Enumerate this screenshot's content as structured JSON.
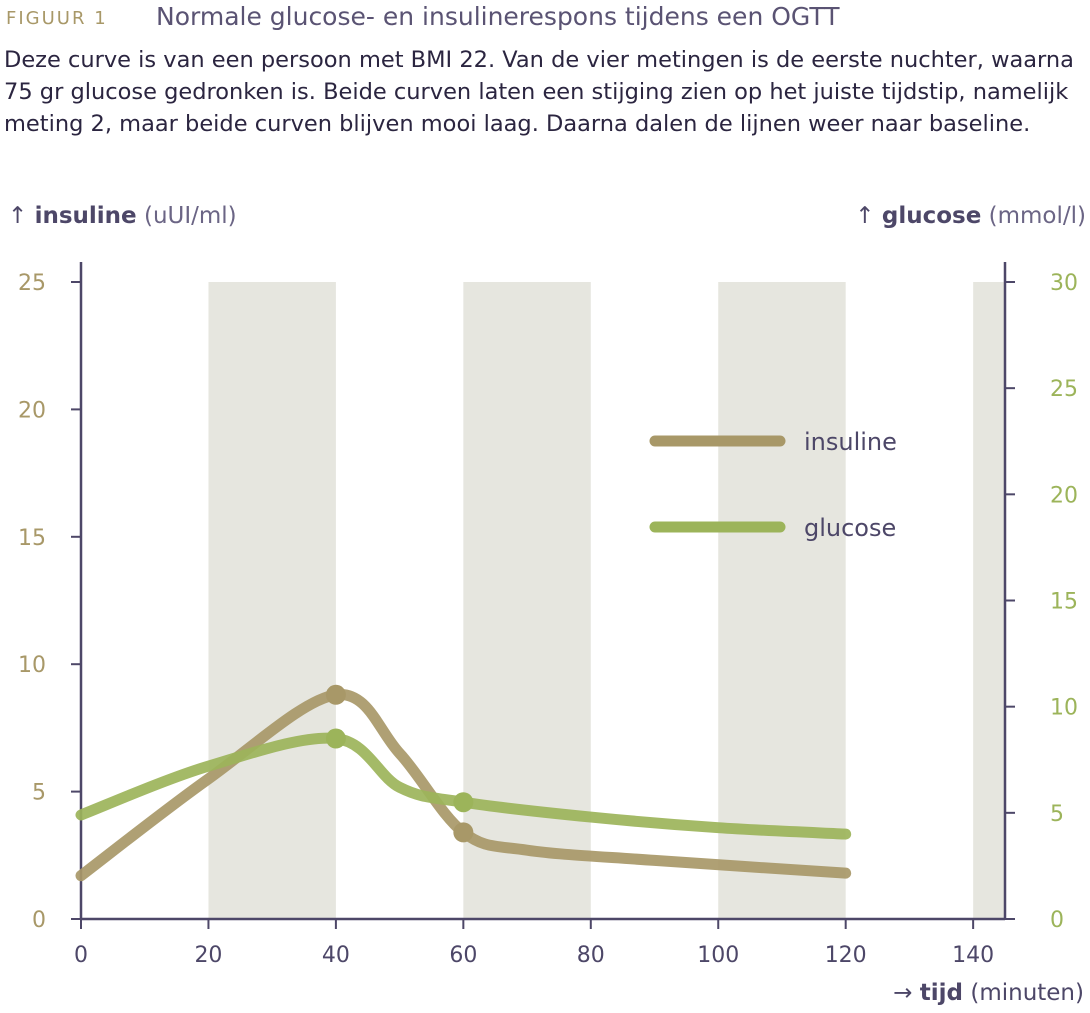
{
  "figure": {
    "label": "FIGUUR 1",
    "title": "Normale glucose- en insulinerespons tijdens een OGTT",
    "caption": "Deze curve is van een persoon met BMI 22. Van de vier metingen is de eerste nuchter, waarna 75 gr glucose gedronken is. Beide curven laten een stijging zien op het juiste tijdstip, namelijk meting 2, maar beide curven blijven mooi laag. Daarna dalen de lijnen weer naar baseline."
  },
  "colors": {
    "insuline": "#a89868",
    "glucose": "#9cb45a",
    "axis": "#4d4768",
    "band": "#e6e6df"
  },
  "chart_data": {
    "type": "line",
    "y_left": {
      "label": "insuline",
      "unit": "(uUI/ml)",
      "ticks": [
        0,
        5,
        10,
        15,
        20,
        25
      ],
      "range": [
        0,
        25
      ]
    },
    "y_right": {
      "label": "glucose",
      "unit": "(mmol/l)",
      "ticks": [
        0,
        5,
        10,
        15,
        20,
        25,
        30
      ],
      "range": [
        0,
        30
      ]
    },
    "x": {
      "label": "tijd",
      "unit": "(minuten)",
      "ticks": [
        0,
        20,
        40,
        60,
        80,
        100,
        120,
        140
      ],
      "range": [
        0,
        145
      ]
    },
    "bands": [
      [
        20,
        40
      ],
      [
        60,
        80
      ],
      [
        100,
        120
      ],
      [
        140,
        145
      ]
    ],
    "legend": {
      "position": "right-middle"
    },
    "series": [
      {
        "name": "insuline",
        "axis": "left",
        "measurements": [
          {
            "x": 40,
            "y": 8.8
          },
          {
            "x": 60,
            "y": 3.4
          }
        ],
        "curve": [
          [
            0,
            1.7
          ],
          [
            20,
            5.5
          ],
          [
            40,
            8.8
          ],
          [
            50,
            6.5
          ],
          [
            60,
            3.4
          ],
          [
            70,
            2.7
          ],
          [
            90,
            2.3
          ],
          [
            120,
            1.8
          ]
        ]
      },
      {
        "name": "glucose",
        "axis": "right",
        "measurements": [
          {
            "x": 40,
            "y": 8.5
          },
          {
            "x": 60,
            "y": 5.5
          }
        ],
        "curve": [
          [
            0,
            4.9
          ],
          [
            20,
            7.2
          ],
          [
            40,
            8.5
          ],
          [
            50,
            6.2
          ],
          [
            60,
            5.5
          ],
          [
            80,
            4.8
          ],
          [
            100,
            4.3
          ],
          [
            120,
            4.0
          ]
        ]
      }
    ]
  }
}
